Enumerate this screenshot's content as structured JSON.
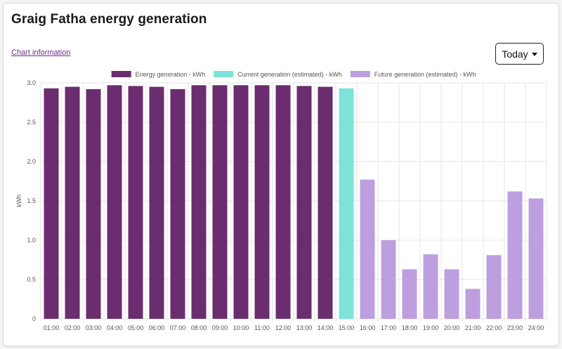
{
  "header": {
    "title": "Graig Fatha energy generation",
    "chart_info_label": "Chart information",
    "period_button_label": "Today"
  },
  "colors": {
    "actual": "#6b2d6f",
    "current": "#7de3d8",
    "future": "#bd9fe0",
    "grid": "#e6e6e6",
    "link": "#6b2d87"
  },
  "chart_data": {
    "type": "bar",
    "title": "",
    "xlabel": "",
    "ylabel": "kWh",
    "ylim": [
      0,
      3.0
    ],
    "yticks": [
      0,
      0.5,
      1.0,
      1.5,
      2.0,
      2.5,
      3.0
    ],
    "ytick_labels": [
      "0",
      "0.5",
      "1.0",
      "1.5",
      "2.0",
      "2.5",
      "3.0"
    ],
    "grid": true,
    "legend_position": "top-center",
    "categories": [
      "01:00",
      "02:00",
      "03:00",
      "04:00",
      "05:00",
      "06:00",
      "07:00",
      "08:00",
      "09:00",
      "10:00",
      "11:00",
      "12:00",
      "13:00",
      "14:00",
      "15:00",
      "16:00",
      "17:00",
      "18:00",
      "19:00",
      "20:00",
      "21:00",
      "22:00",
      "23:00",
      "24:00"
    ],
    "series": [
      {
        "name": "Energy generation - kWh",
        "color_key": "actual",
        "values": [
          2.93,
          2.95,
          2.92,
          2.97,
          2.96,
          2.95,
          2.92,
          2.97,
          2.97,
          2.97,
          2.97,
          2.97,
          2.96,
          2.95,
          null,
          null,
          null,
          null,
          null,
          null,
          null,
          null,
          null,
          null
        ]
      },
      {
        "name": "Current generation (estimated) - kWh",
        "color_key": "current",
        "values": [
          null,
          null,
          null,
          null,
          null,
          null,
          null,
          null,
          null,
          null,
          null,
          null,
          null,
          null,
          2.93,
          null,
          null,
          null,
          null,
          null,
          null,
          null,
          null,
          null
        ]
      },
      {
        "name": "Future generation (estimated) - kWh",
        "color_key": "future",
        "values": [
          null,
          null,
          null,
          null,
          null,
          null,
          null,
          null,
          null,
          null,
          null,
          null,
          null,
          null,
          null,
          1.77,
          1.0,
          0.63,
          0.82,
          0.63,
          0.38,
          0.81,
          1.62,
          1.53
        ]
      }
    ]
  }
}
